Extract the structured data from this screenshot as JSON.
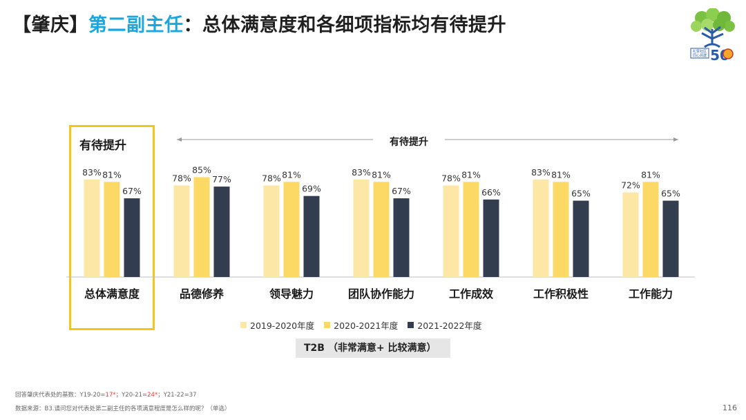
{
  "title": {
    "prefix": "【肇庆】",
    "accent": "第二副主任",
    "suffix": "：总体满意度和各细项指标均有待提升"
  },
  "logo": {
    "text_line1": "礼赞社区",
    "text_line2": "同心共建",
    "number": "50"
  },
  "highlight": {
    "label": "有待提升"
  },
  "range_annotation": {
    "label": "有待提升"
  },
  "chart_data": {
    "type": "bar",
    "categories": [
      "总体满意度",
      "品德修养",
      "领导魅力",
      "团队协作能力",
      "工作成效",
      "工作积极性",
      "工作能力"
    ],
    "series": [
      {
        "name": "2019-2020年度",
        "color": "#fde7a6",
        "values": [
          83,
          78,
          78,
          83,
          78,
          83,
          72
        ]
      },
      {
        "name": "2020-2021年度",
        "color": "#fbd964",
        "values": [
          81,
          85,
          81,
          81,
          81,
          81,
          81
        ]
      },
      {
        "name": "2021-2022年度",
        "color": "#323e50",
        "values": [
          67,
          77,
          69,
          67,
          66,
          65,
          65
        ]
      }
    ],
    "value_suffix": "%",
    "ylim": [
      0,
      100
    ],
    "legend_position": "bottom",
    "grid": false
  },
  "metric_label": "T2B （非常满意+ 比较满意）",
  "footnotes": {
    "base_prefix": "回答肇庆代表处的基数：",
    "base_y19": "Y19-20=",
    "base_y19_val": "17*",
    "base_y20": "；Y20-21=",
    "base_y20_val": "24*",
    "base_y21": "；Y21-22=37",
    "source": "数据来源：B3.请问您对代表处第二副主任的各项满意程度是怎么样的呢？（单选）"
  },
  "page_number": "116"
}
